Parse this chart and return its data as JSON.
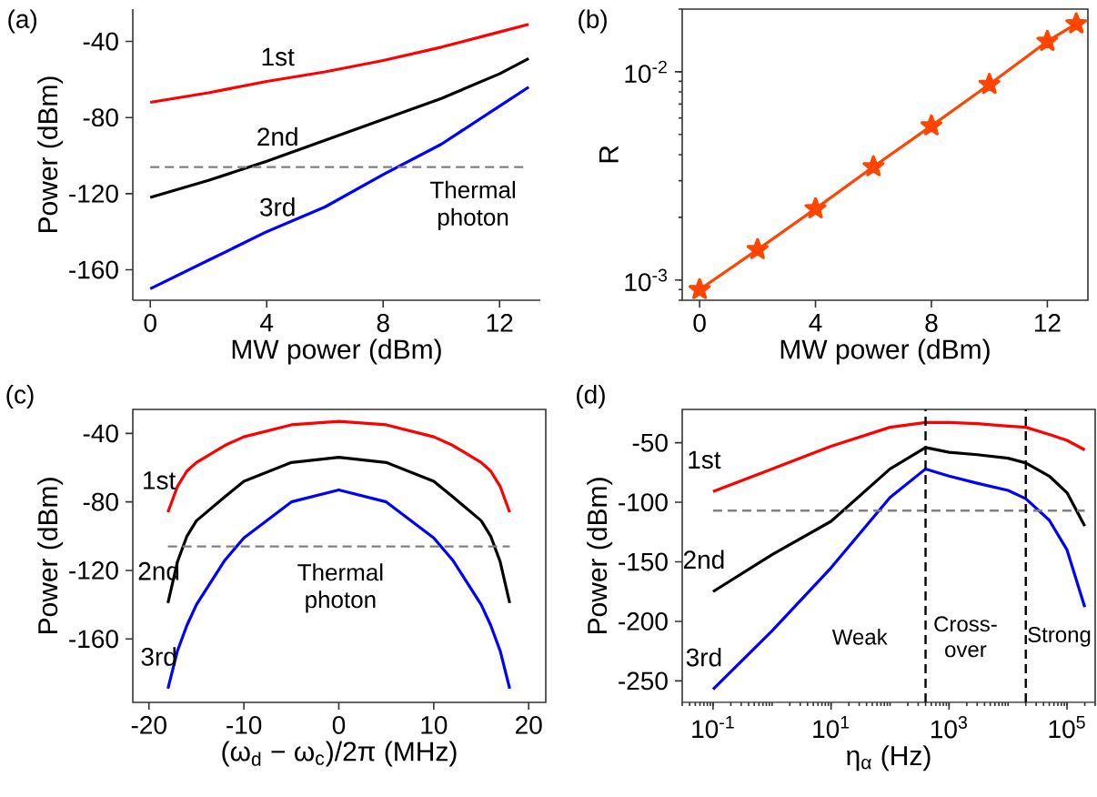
{
  "chart_data": [
    {
      "type": "line",
      "title": "(a)",
      "xlabel": "MW power (dBm)",
      "ylabel": "Power (dBm)",
      "x": [
        0,
        2,
        4,
        6,
        8,
        10,
        12,
        13
      ],
      "series": [
        {
          "name": "1st",
          "color": "#ff0000",
          "values": [
            -72,
            -67,
            -61,
            -56,
            -50,
            -43,
            -35,
            -31
          ]
        },
        {
          "name": "2nd",
          "color": "#000000",
          "values": [
            -122,
            -113,
            -103,
            -92,
            -81,
            -70,
            -57,
            -49
          ]
        },
        {
          "name": "3rd",
          "color": "#0000ff",
          "values": [
            -170,
            -155,
            -140,
            -127,
            -110,
            -94,
            -74,
            -64
          ]
        }
      ],
      "xlim": [
        -0.6,
        13.4
      ],
      "ylim": [
        -176,
        -23
      ],
      "xticks": [
        0,
        4,
        8,
        12
      ],
      "yticks": [
        -160,
        -120,
        -80,
        -40
      ],
      "ref_lines": [
        {
          "axis": "y",
          "value": -106,
          "color": "#808080",
          "line_style": "dashed"
        }
      ],
      "annotations": [
        "Thermal photon"
      ],
      "marker": "none",
      "line_style": "solid"
    },
    {
      "type": "line",
      "title": "(b)",
      "xlabel": "MW power (dBm)",
      "ylabel": "R",
      "x": [
        0,
        2,
        4,
        6,
        8,
        10,
        12,
        13
      ],
      "series": [
        {
          "color": "#ff4500",
          "values": [
            0.0009,
            0.0014,
            0.0022,
            0.0035,
            0.0055,
            0.0087,
            0.014,
            0.017
          ]
        }
      ],
      "xlim": [
        -0.6,
        13.4
      ],
      "ylim": [
        0.0008,
        0.02
      ],
      "xticks": [
        0,
        4,
        8,
        12
      ],
      "yticks": [
        {
          "value": 0.001,
          "label": "10$^{-3}$"
        },
        {
          "value": 0.01,
          "label": "10$^{-2}$"
        }
      ],
      "log": "y",
      "marker": "star",
      "line_style": "solid"
    },
    {
      "type": "line",
      "title": "(c)",
      "xlabel": "(ω$_{d}$ − ω$_{c}$)/2π (MHz)",
      "ylabel": "Power (dBm)",
      "x": [
        -18,
        -17,
        -16,
        -15,
        -12,
        -10,
        -5,
        0,
        5,
        10,
        12,
        15,
        16,
        17,
        18
      ],
      "series": [
        {
          "name": "1st",
          "color": "#ff0000",
          "values": [
            -86,
            -71,
            -62,
            -57,
            -47,
            -42,
            -35,
            -33,
            -35,
            -42,
            -47,
            -57,
            -62,
            -71,
            -86
          ]
        },
        {
          "name": "2nd",
          "color": "#000000",
          "values": [
            -139,
            -115,
            -100,
            -91,
            -77,
            -68,
            -57,
            -54,
            -57,
            -68,
            -77,
            -91,
            -100,
            -115,
            -139
          ]
        },
        {
          "name": "3rd",
          "color": "#0000ff",
          "values": [
            -189,
            -167,
            -152,
            -140,
            -114,
            -101,
            -80,
            -73,
            -80,
            -101,
            -114,
            -140,
            -152,
            -167,
            -189
          ]
        }
      ],
      "xlim": [
        -21.7,
        21.8
      ],
      "ylim": [
        -197,
        -26
      ],
      "xticks": [
        -20,
        -10,
        0,
        10,
        20
      ],
      "yticks": [
        -160,
        -120,
        -80,
        -40
      ],
      "ref_lines": [
        {
          "axis": "y",
          "value": -106,
          "color": "#808080",
          "line_style": "dashed"
        }
      ],
      "annotations": [
        "Thermal photon"
      ],
      "marker": "none",
      "line_style": "solid"
    },
    {
      "type": "line",
      "title": "(d)",
      "xlabel": "η$_{α}$ (Hz)",
      "ylabel": "Power (dBm)",
      "x": [
        0.1,
        1,
        10,
        100,
        400,
        1000,
        3000,
        10000,
        20000,
        50000,
        100000,
        200000
      ],
      "series": [
        {
          "name": "1st",
          "color": "#ff0000",
          "values": [
            -91,
            -72,
            -53,
            -37,
            -33,
            -33,
            -34,
            -36,
            -37,
            -43,
            -48,
            -56
          ]
        },
        {
          "name": "2nd",
          "color": "#000000",
          "values": [
            -175,
            -144,
            -116,
            -72,
            -54,
            -58,
            -60,
            -63,
            -67,
            -78,
            -92,
            -120
          ]
        },
        {
          "name": "3rd",
          "color": "#0000ff",
          "values": [
            -257,
            -208,
            -155,
            -96,
            -72,
            -78,
            -84,
            -90,
            -97,
            -115,
            -140,
            -188
          ]
        }
      ],
      "xlim": [
        0.03,
        300000
      ],
      "ylim": [
        -268,
        -22
      ],
      "xticks": [
        {
          "value": 0.1,
          "label": "10$^{-1}$"
        },
        {
          "value": 10,
          "label": "10$^{1}$"
        },
        {
          "value": 1000,
          "label": "10$^{3}$"
        },
        {
          "value": 100000,
          "label": "10$^{5}$"
        }
      ],
      "yticks": [
        -250,
        -200,
        -150,
        -100,
        -50
      ],
      "ref_lines": [
        {
          "axis": "y",
          "value": -107,
          "color": "#808080",
          "line_style": "dashed"
        },
        {
          "axis": "x",
          "value": 400,
          "color": "#000000",
          "line_style": "dashed"
        },
        {
          "axis": "x",
          "value": 20000,
          "color": "#000000",
          "line_style": "dashed"
        }
      ],
      "annotations": [
        "Weak",
        "Cross-over",
        "Strong"
      ],
      "log": "x",
      "marker": "none",
      "line_style": "solid"
    }
  ]
}
